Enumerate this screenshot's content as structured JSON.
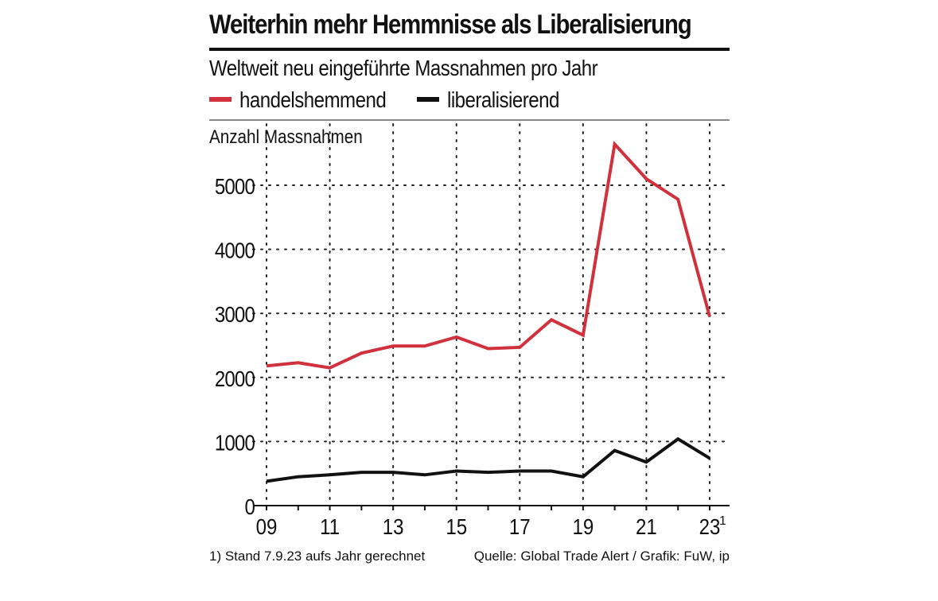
{
  "title": "Weiterhin mehr Hemmnisse als Liberalisierung",
  "subtitle": "Weltweit neu eingeführte Massnahmen pro Jahr",
  "colors": {
    "red": "#d0313d",
    "black": "#111111",
    "grid": "#222222"
  },
  "footnote": "1) Stand 7.9.23 aufs Jahr gerechnet",
  "source": "Quelle: Global Trade Alert / Grafik: FuW, ip",
  "chart_data": {
    "type": "line",
    "title": "Weiterhin mehr Hemmnisse als Liberalisierung",
    "subtitle": "Weltweit neu eingeführte Massnahmen pro Jahr",
    "ylabel": "Anzahl Massnahmen",
    "xlabel": "",
    "ylim": [
      0,
      6000
    ],
    "yticks": [
      0,
      1000,
      2000,
      3000,
      4000,
      5000
    ],
    "ytick_labels": [
      "0",
      "1000",
      "2000",
      "3000",
      "4000",
      "5000"
    ],
    "x": [
      2009,
      2010,
      2011,
      2012,
      2013,
      2014,
      2015,
      2016,
      2017,
      2018,
      2019,
      2020,
      2021,
      2022,
      2023
    ],
    "xlim": [
      2009,
      2023
    ],
    "xticks": [
      2009,
      2011,
      2013,
      2015,
      2017,
      2019,
      2021,
      2023
    ],
    "xtick_labels": [
      "09",
      "11",
      "13",
      "15",
      "17",
      "19",
      "21",
      "23"
    ],
    "xtick_footnote": "1",
    "grid": true,
    "legend_position": "top-left",
    "series": [
      {
        "name": "handelshemmend",
        "color": "#d0313d",
        "values": [
          2180,
          2230,
          2150,
          2380,
          2490,
          2490,
          2630,
          2450,
          2470,
          2900,
          2660,
          5640,
          5100,
          4780,
          2950
        ]
      },
      {
        "name": "liberalisierend",
        "color": "#111111",
        "values": [
          380,
          450,
          480,
          520,
          520,
          480,
          540,
          520,
          540,
          540,
          450,
          860,
          680,
          1040,
          740
        ]
      }
    ]
  }
}
